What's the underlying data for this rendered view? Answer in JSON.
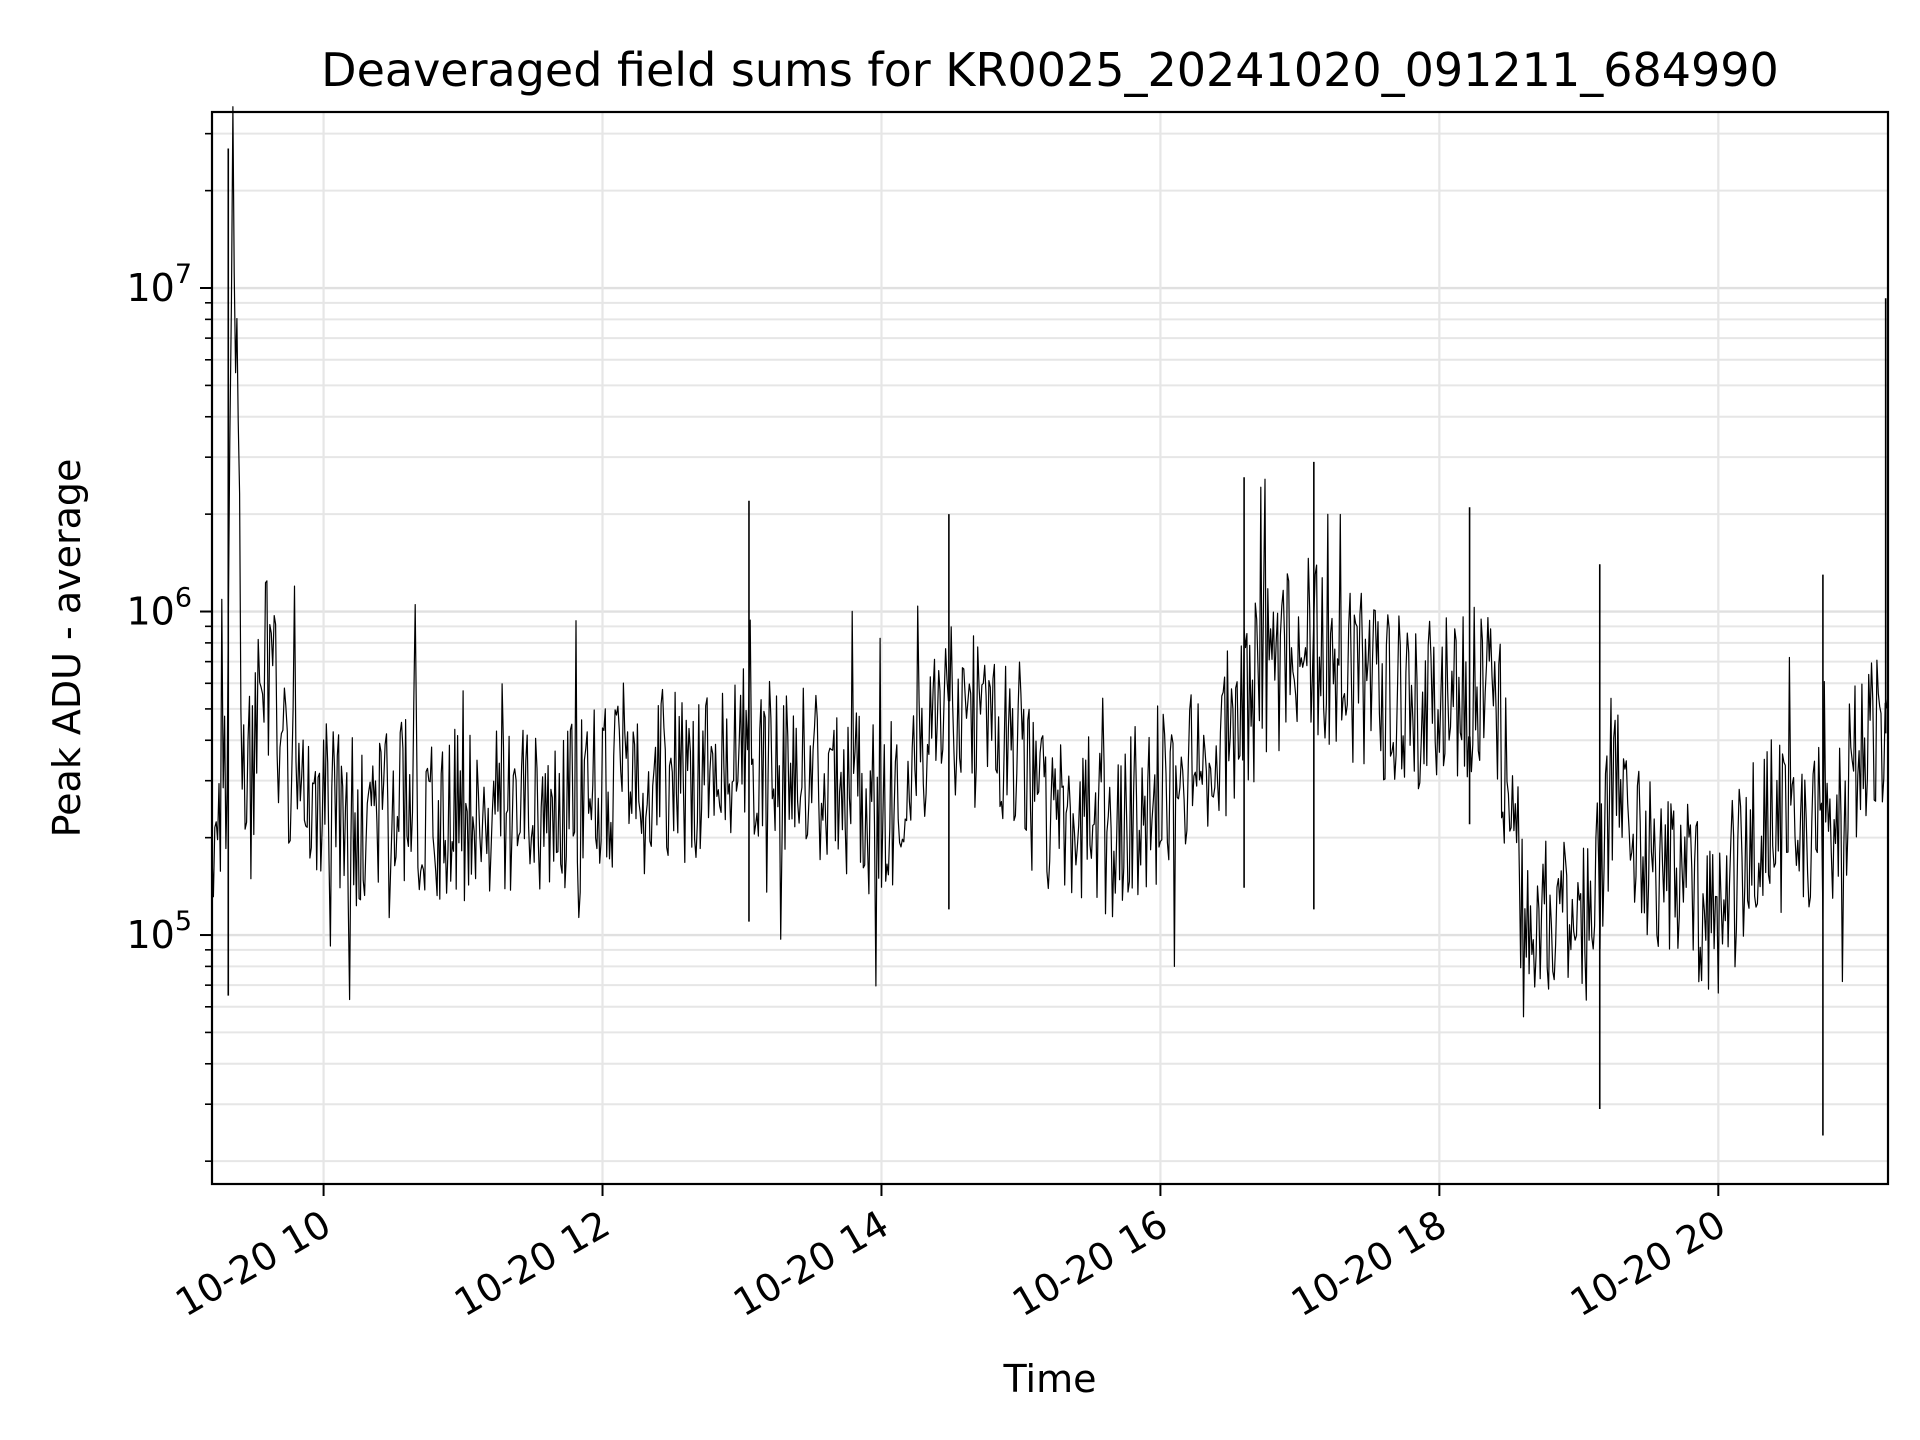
{
  "chart_data": {
    "type": "line",
    "title": "Deaveraged field sums for KR0025_20241020_091211_684990",
    "xlabel": "Time",
    "ylabel": "Peak ADU - average",
    "xlim": [
      "2024-10-20 09:12",
      "2024-10-20 21:13"
    ],
    "ylim": [
      17000,
      35000000
    ],
    "yscale": "log",
    "grid": true,
    "legend": "none",
    "line_color": "#000000",
    "x_ticks": [
      "2024-10-20 10:00",
      "2024-10-20 12:00",
      "2024-10-20 14:00",
      "2024-10-20 16:00",
      "2024-10-20 18:00",
      "2024-10-20 20:00"
    ],
    "x_tick_labels": [
      "10-20 10",
      "10-20 12",
      "10-20 14",
      "10-20 16",
      "10-20 18",
      "10-20 20"
    ],
    "y_ticks": [
      {
        "base": "10",
        "exp": "5",
        "value": 100000
      },
      {
        "base": "10",
        "exp": "6",
        "value": 1000000
      },
      {
        "base": "10",
        "exp": "7",
        "value": 10000000
      }
    ],
    "x": [
      "2024-10-20 09:12",
      "2024-10-20 09:15",
      "2024-10-20 09:18",
      "2024-10-20 09:19",
      "2024-10-20 09:21",
      "2024-10-20 09:25",
      "2024-10-20 09:30",
      "2024-10-20 09:35",
      "2024-10-20 09:40",
      "2024-10-20 09:45",
      "2024-10-20 09:50",
      "2024-10-20 10:00",
      "2024-10-20 10:10",
      "2024-10-20 10:20",
      "2024-10-20 10:30",
      "2024-10-20 10:40",
      "2024-10-20 10:50",
      "2024-10-20 11:00",
      "2024-10-20 11:15",
      "2024-10-20 11:30",
      "2024-10-20 11:45",
      "2024-10-20 12:00",
      "2024-10-20 12:15",
      "2024-10-20 12:30",
      "2024-10-20 12:45",
      "2024-10-20 13:00",
      "2024-10-20 13:10",
      "2024-10-20 13:30",
      "2024-10-20 13:45",
      "2024-10-20 14:00",
      "2024-10-20 14:15",
      "2024-10-20 14:30",
      "2024-10-20 14:45",
      "2024-10-20 15:00",
      "2024-10-20 15:10",
      "2024-10-20 15:20",
      "2024-10-20 15:40",
      "2024-10-20 16:00",
      "2024-10-20 16:15",
      "2024-10-20 16:30",
      "2024-10-20 16:45",
      "2024-10-20 17:00",
      "2024-10-20 17:15",
      "2024-10-20 17:30",
      "2024-10-20 17:45",
      "2024-10-20 18:00",
      "2024-10-20 18:15",
      "2024-10-20 18:25",
      "2024-10-20 18:35",
      "2024-10-20 18:50",
      "2024-10-20 19:05",
      "2024-10-20 19:15",
      "2024-10-20 19:30",
      "2024-10-20 19:45",
      "2024-10-20 20:00",
      "2024-10-20 20:15",
      "2024-10-20 20:30",
      "2024-10-20 20:45",
      "2024-10-20 21:00",
      "2024-10-20 21:10",
      "2024-10-20 21:13"
    ],
    "series": [
      {
        "values": [
          280000,
          250000,
          300000,
          500000,
          27000000,
          400000,
          350000,
          700000,
          500000,
          300000,
          280000,
          250000,
          220000,
          240000,
          260000,
          250000,
          230000,
          240000,
          260000,
          250000,
          240000,
          280000,
          320000,
          300000,
          330000,
          420000,
          350000,
          320000,
          280000,
          230000,
          300000,
          500000,
          420000,
          380000,
          220000,
          230000,
          210000,
          270000,
          350000,
          450000,
          620000,
          800000,
          700000,
          580000,
          520000,
          500000,
          560000,
          550000,
          130000,
          110000,
          100000,
          330000,
          180000,
          150000,
          110000,
          220000,
          260000,
          200000,
          330000,
          420000,
          550000
        ]
      }
    ],
    "spikes": [
      {
        "x": "2024-10-20 09:19",
        "low": 65000,
        "high": 27000000
      },
      {
        "x": "2024-10-20 13:03",
        "low": 110000,
        "high": 2200000
      },
      {
        "x": "2024-10-20 14:29",
        "low": 120000,
        "high": 2000000
      },
      {
        "x": "2024-10-20 16:36",
        "low": 140000,
        "high": 2600000
      },
      {
        "x": "2024-10-20 17:06",
        "low": 120000,
        "high": 2900000
      },
      {
        "x": "2024-10-20 18:13",
        "low": 220000,
        "high": 2100000
      },
      {
        "x": "2024-10-20 19:09",
        "low": 29000,
        "high": 1400000
      },
      {
        "x": "2024-10-20 20:45",
        "low": 24000,
        "high": 1300000
      },
      {
        "x": "2024-10-20 21:12",
        "low": 420000,
        "high": 9300000
      }
    ]
  }
}
